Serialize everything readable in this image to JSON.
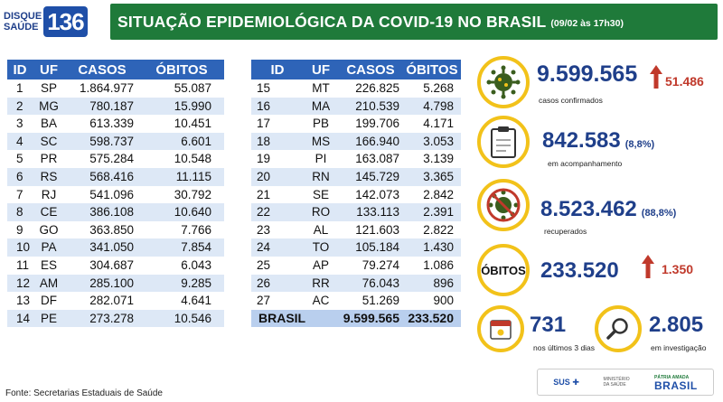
{
  "header": {
    "logo_line1": "DISQUE",
    "logo_line2": "SAÚDE",
    "logo_number": "136",
    "title": "SITUAÇÃO EPIDEMIOLÓGICA DA COVID-19 NO BRASIL",
    "date": "(09/02 às 17h30)"
  },
  "table_headers": {
    "id": "ID",
    "uf": "UF",
    "casos": "CASOS",
    "obitos": "ÓBITOS"
  },
  "table_left": [
    {
      "id": "1",
      "uf": "SP",
      "casos": "1.864.977",
      "obitos": "55.087"
    },
    {
      "id": "2",
      "uf": "MG",
      "casos": "780.187",
      "obitos": "15.990"
    },
    {
      "id": "3",
      "uf": "BA",
      "casos": "613.339",
      "obitos": "10.451"
    },
    {
      "id": "4",
      "uf": "SC",
      "casos": "598.737",
      "obitos": "6.601"
    },
    {
      "id": "5",
      "uf": "PR",
      "casos": "575.284",
      "obitos": "10.548"
    },
    {
      "id": "6",
      "uf": "RS",
      "casos": "568.416",
      "obitos": "11.115"
    },
    {
      "id": "7",
      "uf": "RJ",
      "casos": "541.096",
      "obitos": "30.792"
    },
    {
      "id": "8",
      "uf": "CE",
      "casos": "386.108",
      "obitos": "10.640"
    },
    {
      "id": "9",
      "uf": "GO",
      "casos": "363.850",
      "obitos": "7.766"
    },
    {
      "id": "10",
      "uf": "PA",
      "casos": "341.050",
      "obitos": "7.854"
    },
    {
      "id": "11",
      "uf": "ES",
      "casos": "304.687",
      "obitos": "6.043"
    },
    {
      "id": "12",
      "uf": "AM",
      "casos": "285.100",
      "obitos": "9.285"
    },
    {
      "id": "13",
      "uf": "DF",
      "casos": "282.071",
      "obitos": "4.641"
    },
    {
      "id": "14",
      "uf": "PE",
      "casos": "273.278",
      "obitos": "10.546"
    }
  ],
  "table_right": [
    {
      "id": "15",
      "uf": "MT",
      "casos": "226.825",
      "obitos": "5.268"
    },
    {
      "id": "16",
      "uf": "MA",
      "casos": "210.539",
      "obitos": "4.798"
    },
    {
      "id": "17",
      "uf": "PB",
      "casos": "199.706",
      "obitos": "4.171"
    },
    {
      "id": "18",
      "uf": "MS",
      "casos": "166.940",
      "obitos": "3.053"
    },
    {
      "id": "19",
      "uf": "PI",
      "casos": "163.087",
      "obitos": "3.139"
    },
    {
      "id": "20",
      "uf": "RN",
      "casos": "145.729",
      "obitos": "3.365"
    },
    {
      "id": "21",
      "uf": "SE",
      "casos": "142.073",
      "obitos": "2.842"
    },
    {
      "id": "22",
      "uf": "RO",
      "casos": "133.113",
      "obitos": "2.391"
    },
    {
      "id": "23",
      "uf": "AL",
      "casos": "121.603",
      "obitos": "2.822"
    },
    {
      "id": "24",
      "uf": "TO",
      "casos": "105.184",
      "obitos": "1.430"
    },
    {
      "id": "25",
      "uf": "AP",
      "casos": "79.274",
      "obitos": "1.086"
    },
    {
      "id": "26",
      "uf": "RR",
      "casos": "76.043",
      "obitos": "896"
    },
    {
      "id": "27",
      "uf": "AC",
      "casos": "51.269",
      "obitos": "900"
    }
  ],
  "total": {
    "label": "BRASIL",
    "casos": "9.599.565",
    "obitos": "233.520"
  },
  "stats": {
    "confirmed": {
      "value": "9.599.565",
      "delta": "51.486",
      "label": "casos confirmados",
      "icon": "virus-icon"
    },
    "monitoring": {
      "value": "842.583",
      "pct": "(8,8%)",
      "label": "em acompanhamento",
      "icon": "clipboard-icon"
    },
    "recovered": {
      "value": "8.523.462",
      "pct": "(88,8%)",
      "label": "recuperados",
      "icon": "crossed-virus-icon"
    },
    "deaths": {
      "circle_label": "ÓBITOS",
      "value": "233.520",
      "delta": "1.350"
    },
    "recent": {
      "value": "731",
      "label": "nos últimos 3 dias",
      "icon": "calendar-icon"
    },
    "investigation": {
      "value": "2.805",
      "label": "em investigação",
      "icon": "magnifier-icon"
    }
  },
  "colors": {
    "accent_blue": "#1f3f8a",
    "header_green": "#1f7a3a",
    "ring_yellow": "#f2c21a",
    "delta_red": "#c0392b"
  },
  "footer": {
    "source": "Fonte: Secretarias Estaduais de Saúde",
    "sus": "SUS",
    "ministry": "MINISTÉRIO DA SAÚDE",
    "brasil_small": "PÁTRIA AMADA",
    "brasil_large": "BRASIL"
  }
}
